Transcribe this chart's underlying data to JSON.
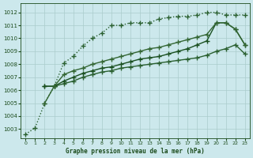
{
  "title": "Graphe pression niveau de la mer (hPa)",
  "background_color": "#cce8ec",
  "grid_color": "#aacccc",
  "text_color": "#1a4a1a",
  "xlim": [
    -0.5,
    23.5
  ],
  "ylim": [
    1002.3,
    1012.7
  ],
  "yticks": [
    1003,
    1004,
    1005,
    1006,
    1007,
    1008,
    1009,
    1010,
    1011,
    1012
  ],
  "xticks": [
    0,
    1,
    2,
    3,
    4,
    5,
    6,
    7,
    8,
    9,
    10,
    11,
    12,
    13,
    14,
    15,
    16,
    17,
    18,
    19,
    20,
    21,
    22,
    23
  ],
  "series": [
    {
      "x": [
        0,
        1,
        2,
        3,
        4,
        5,
        6,
        7,
        8,
        9,
        10,
        11,
        12,
        13,
        14,
        15,
        16,
        17,
        18,
        19,
        20,
        21,
        22,
        23
      ],
      "y": [
        1002.6,
        1003.1,
        1005.0,
        1006.3,
        1008.1,
        1008.6,
        1009.4,
        1010.0,
        1010.4,
        1011.0,
        1011.0,
        1011.2,
        1011.2,
        1011.2,
        1011.5,
        1011.6,
        1011.7,
        1011.7,
        1011.8,
        1012.0,
        1012.0,
        1011.8,
        1011.8,
        1011.8
      ],
      "color": "#2a6030",
      "linestyle": "dotted",
      "marker": "+",
      "markersize": 4,
      "markeredgewidth": 1.0,
      "linewidth": 1.0
    },
    {
      "x": [
        2,
        3,
        4,
        5,
        6,
        7,
        8,
        9,
        10,
        11,
        12,
        13,
        14,
        15,
        16,
        17,
        18,
        19,
        20,
        21,
        22,
        23
      ],
      "y": [
        1006.3,
        1006.3,
        1006.5,
        1006.7,
        1007.0,
        1007.2,
        1007.4,
        1007.5,
        1007.7,
        1007.8,
        1007.9,
        1008.0,
        1008.1,
        1008.2,
        1008.3,
        1008.4,
        1008.5,
        1008.7,
        1009.0,
        1009.2,
        1009.5,
        1008.8
      ],
      "color": "#2a6030",
      "linestyle": "solid",
      "marker": "+",
      "markersize": 4,
      "markeredgewidth": 1.0,
      "linewidth": 1.0
    },
    {
      "x": [
        2,
        3,
        4,
        5,
        6,
        7,
        8,
        9,
        10,
        11,
        12,
        13,
        14,
        15,
        16,
        17,
        18,
        19,
        20,
        21,
        22,
        23
      ],
      "y": [
        1006.3,
        1006.3,
        1006.7,
        1007.0,
        1007.3,
        1007.5,
        1007.7,
        1007.8,
        1008.0,
        1008.2,
        1008.4,
        1008.5,
        1008.6,
        1008.8,
        1009.0,
        1009.2,
        1009.5,
        1009.8,
        1011.2,
        1011.2,
        1010.7,
        1009.5
      ],
      "color": "#1a5020",
      "linestyle": "solid",
      "marker": "+",
      "markersize": 4,
      "markeredgewidth": 1.0,
      "linewidth": 1.0
    },
    {
      "x": [
        2,
        3,
        4,
        5,
        6,
        7,
        8,
        9,
        10,
        11,
        12,
        13,
        14,
        15,
        16,
        17,
        18,
        19,
        20,
        21,
        22,
        23
      ],
      "y": [
        1005.0,
        1006.3,
        1007.2,
        1007.5,
        1007.7,
        1008.0,
        1008.2,
        1008.4,
        1008.6,
        1008.8,
        1009.0,
        1009.2,
        1009.3,
        1009.5,
        1009.7,
        1009.9,
        1010.1,
        1010.3,
        1011.2,
        1011.2,
        1010.7,
        1009.5
      ],
      "color": "#336633",
      "linestyle": "solid",
      "marker": "+",
      "markersize": 4,
      "markeredgewidth": 1.0,
      "linewidth": 1.0
    }
  ]
}
